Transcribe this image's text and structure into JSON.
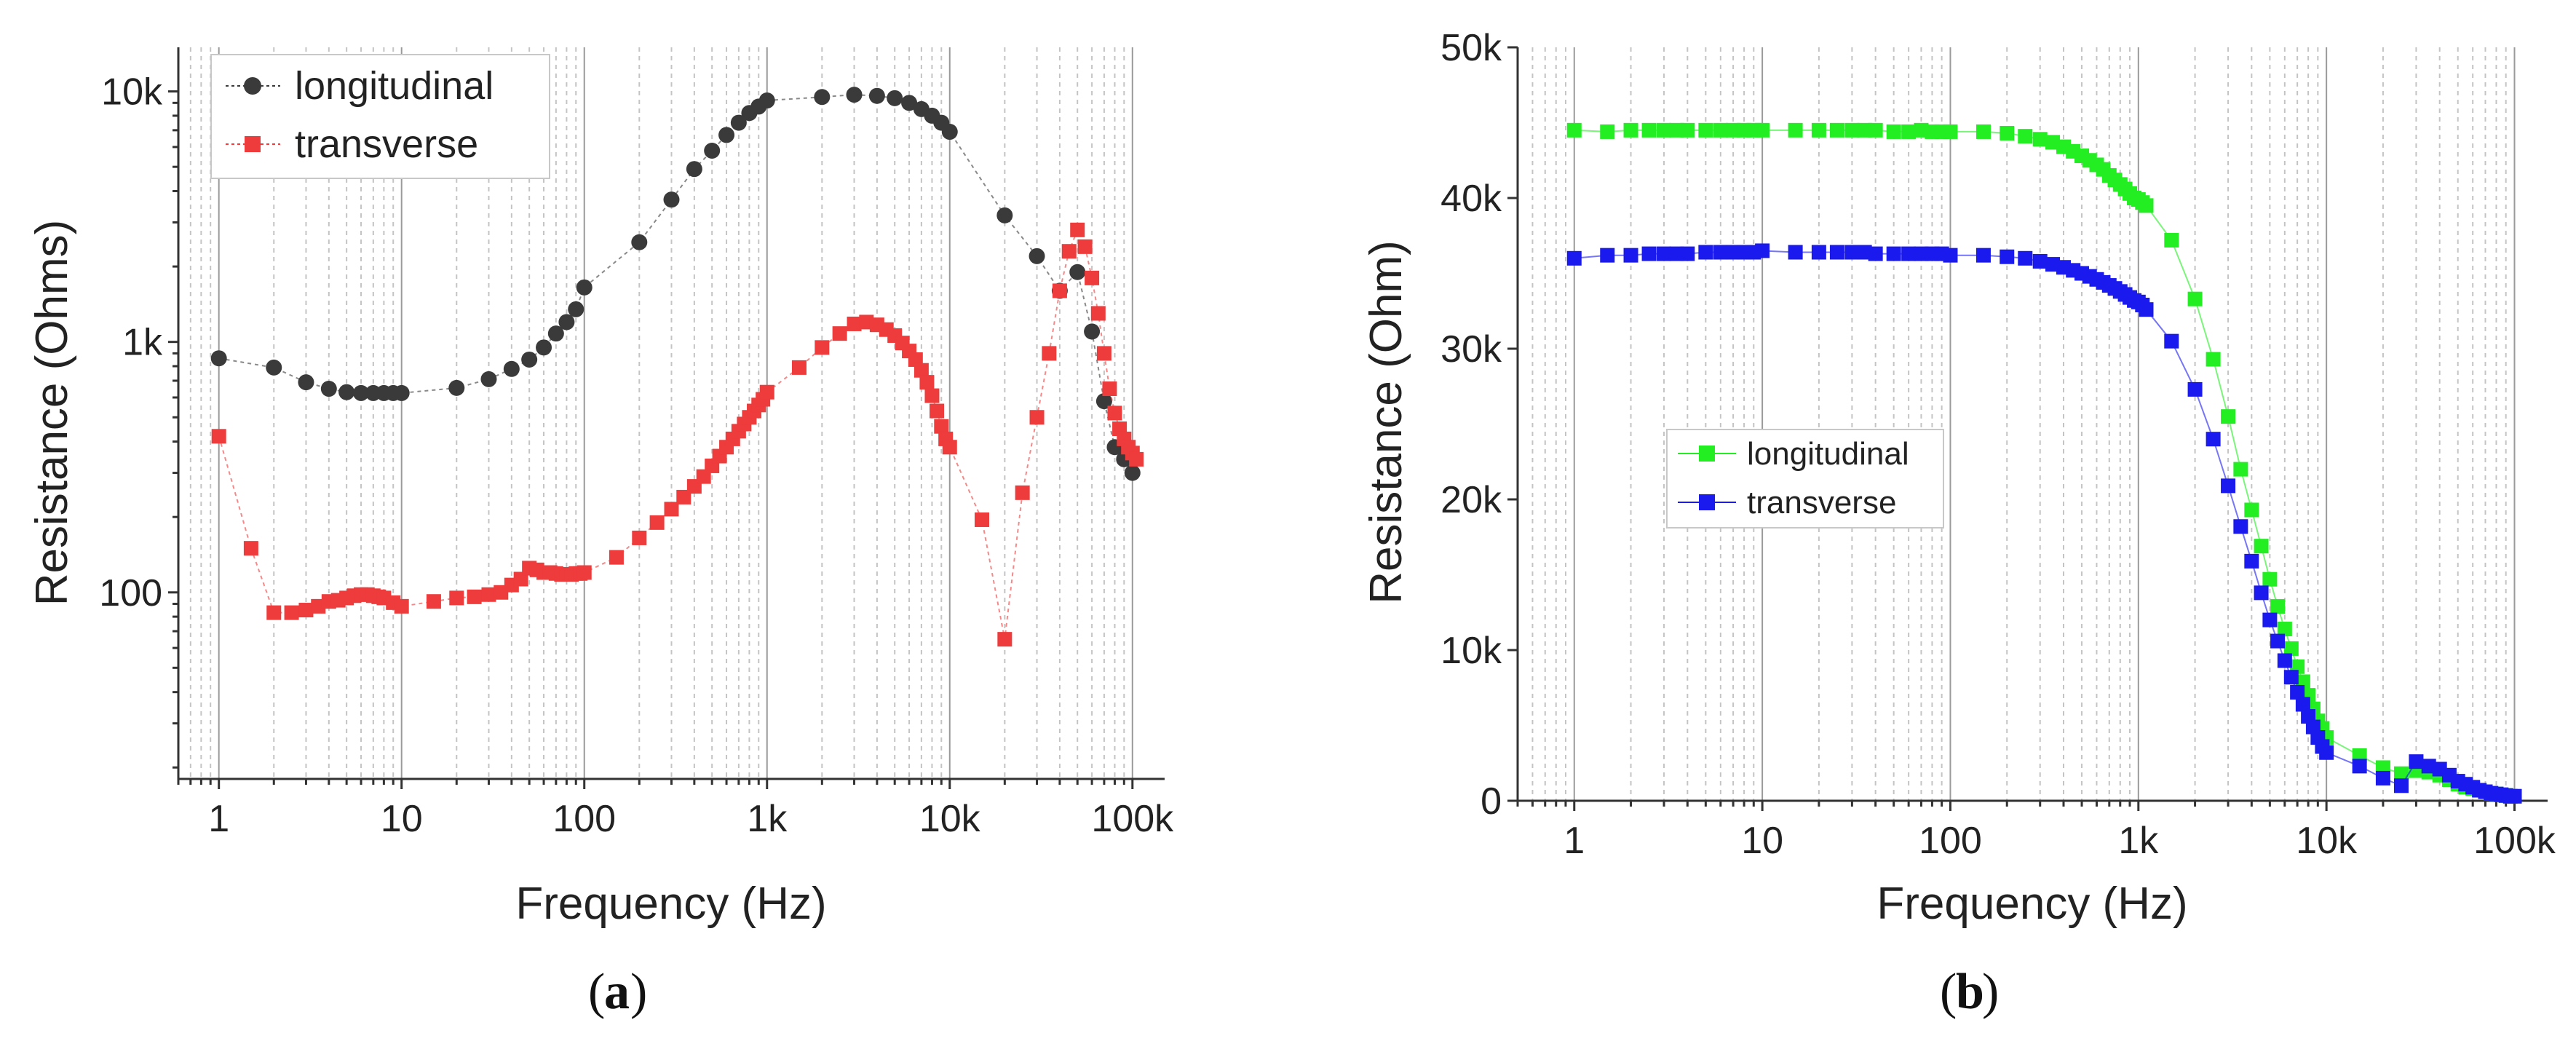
{
  "chart_data": [
    {
      "type": "scatter",
      "panel_label": "a",
      "xlabel": "Frequency (Hz)",
      "ylabel": "Resistance (Ohms)",
      "xscale": "log",
      "yscale": "log",
      "xlim": [
        0.6,
        150000
      ],
      "ylim": [
        18,
        15000
      ],
      "xtick_values": [
        1,
        10,
        100,
        1000,
        10000,
        100000
      ],
      "xtick_labels": [
        "1",
        "10",
        "100",
        "1k",
        "10k",
        "100k"
      ],
      "ytick_values": [
        100,
        1000,
        10000
      ],
      "ytick_labels": [
        "100",
        "1k",
        "10k"
      ],
      "legend_position": "top-left",
      "series": [
        {
          "name": "longitudinal",
          "color": "#3a3a3a",
          "marker": "circle",
          "x": [
            1,
            2,
            3,
            4,
            5,
            6,
            7,
            8,
            9,
            10,
            20,
            30,
            40,
            50,
            60,
            70,
            80,
            90,
            100,
            200,
            300,
            400,
            500,
            600,
            700,
            800,
            900,
            1000,
            2000,
            3000,
            4000,
            5000,
            6000,
            7000,
            8000,
            9000,
            10000,
            20000,
            30000,
            40000,
            50000,
            60000,
            70000,
            80000,
            90000,
            100000
          ],
          "y": [
            860,
            790,
            690,
            650,
            630,
            625,
            625,
            625,
            625,
            625,
            655,
            710,
            780,
            850,
            950,
            1080,
            1200,
            1350,
            1650,
            2500,
            3700,
            4900,
            5800,
            6700,
            7500,
            8200,
            8700,
            9200,
            9500,
            9700,
            9600,
            9400,
            9000,
            8500,
            8000,
            7500,
            6900,
            3200,
            2200,
            1600,
            1900,
            1100,
            580,
            380,
            340,
            300
          ]
        },
        {
          "name": "transverse",
          "color": "#ee3b3b",
          "marker": "square",
          "x": [
            1,
            1.5,
            2,
            2.5,
            3,
            3.5,
            4,
            4.5,
            5,
            5.5,
            6,
            6.5,
            7,
            7.5,
            8,
            9,
            10,
            15,
            20,
            25,
            30,
            35,
            40,
            45,
            50,
            55,
            60,
            65,
            70,
            75,
            80,
            85,
            90,
            95,
            100,
            150,
            200,
            250,
            300,
            350,
            400,
            450,
            500,
            550,
            600,
            650,
            700,
            750,
            800,
            850,
            900,
            950,
            1000,
            1500,
            2000,
            2500,
            3000,
            3500,
            4000,
            4500,
            5000,
            5500,
            6000,
            6500,
            7000,
            7500,
            8000,
            8500,
            9000,
            9500,
            10000,
            15000,
            20000,
            25000,
            30000,
            35000,
            40000,
            45000,
            50000,
            55000,
            60000,
            65000,
            70000,
            75000,
            80000,
            85000,
            90000,
            95000,
            100000,
            105000
          ],
          "y": [
            420,
            150,
            83,
            83,
            85,
            88,
            92,
            93,
            95,
            97,
            98,
            98,
            97,
            96,
            95,
            91,
            88,
            92,
            95,
            96,
            98,
            100,
            107,
            113,
            125,
            123,
            120,
            120,
            119,
            118,
            118,
            118,
            119,
            119,
            120,
            138,
            165,
            190,
            215,
            240,
            265,
            290,
            320,
            350,
            380,
            410,
            440,
            470,
            500,
            530,
            560,
            590,
            630,
            790,
            950,
            1080,
            1180,
            1200,
            1170,
            1120,
            1060,
            990,
            920,
            850,
            770,
            690,
            610,
            530,
            460,
            410,
            380,
            195,
            65,
            250,
            500,
            900,
            1600,
            2300,
            2800,
            2400,
            1800,
            1300,
            900,
            650,
            520,
            450,
            410,
            380,
            360,
            340
          ]
        }
      ]
    },
    {
      "type": "line",
      "panel_label": "b",
      "xlabel": "Frequency (Hz)",
      "ylabel": "Resistance (Ohm)",
      "xscale": "log",
      "yscale": "linear",
      "xlim": [
        0.5,
        150000
      ],
      "ylim": [
        0,
        50000
      ],
      "xtick_values": [
        1,
        10,
        100,
        1000,
        10000,
        100000
      ],
      "xtick_labels": [
        "1",
        "10",
        "100",
        "1k",
        "10k",
        "100k"
      ],
      "ytick_values": [
        0,
        10000,
        20000,
        30000,
        40000,
        50000
      ],
      "ytick_labels": [
        "0",
        "10k",
        "20k",
        "30k",
        "40k",
        "50k"
      ],
      "legend_position": "center-left",
      "series": [
        {
          "name": "longitudinal",
          "color": "#22ee22",
          "marker": "square",
          "x": [
            1,
            1.5,
            2,
            2.5,
            3,
            3.5,
            4,
            5,
            6,
            7,
            8,
            9,
            10,
            15,
            20,
            25,
            30,
            35,
            40,
            50,
            60,
            70,
            80,
            90,
            100,
            150,
            200,
            250,
            300,
            350,
            400,
            450,
            500,
            550,
            600,
            650,
            700,
            750,
            800,
            850,
            900,
            950,
            1000,
            1050,
            1100,
            1500,
            2000,
            2500,
            3000,
            3500,
            4000,
            4500,
            5000,
            5500,
            6000,
            6500,
            7000,
            7500,
            8000,
            8500,
            9000,
            9500,
            10000,
            15000,
            20000,
            25000,
            30000,
            35000,
            40000,
            45000,
            50000,
            55000,
            60000,
            65000,
            70000,
            75000,
            80000,
            85000,
            90000,
            95000,
            100000
          ],
          "y": [
            44500,
            44400,
            44500,
            44500,
            44500,
            44500,
            44500,
            44500,
            44500,
            44500,
            44500,
            44500,
            44500,
            44500,
            44500,
            44500,
            44500,
            44500,
            44500,
            44400,
            44400,
            44500,
            44400,
            44400,
            44400,
            44400,
            44300,
            44100,
            43900,
            43700,
            43400,
            43100,
            42800,
            42500,
            42200,
            41900,
            41500,
            41200,
            40900,
            40600,
            40300,
            40000,
            39900,
            39700,
            39500,
            37200,
            33300,
            29300,
            25500,
            22000,
            19300,
            16900,
            14700,
            12900,
            11400,
            10100,
            8900,
            7900,
            7000,
            6100,
            5300,
            4800,
            4200,
            3000,
            2200,
            1800,
            2000,
            1900,
            1700,
            1400,
            1100,
            900,
            800,
            700,
            600,
            500,
            450,
            400,
            350,
            300,
            300
          ]
        },
        {
          "name": "transverse",
          "color": "#1a1aee",
          "marker": "square",
          "x": [
            1,
            1.5,
            2,
            2.5,
            3,
            3.5,
            4,
            5,
            6,
            7,
            8,
            9,
            10,
            15,
            20,
            25,
            30,
            35,
            40,
            50,
            60,
            70,
            80,
            90,
            100,
            150,
            200,
            250,
            300,
            350,
            400,
            450,
            500,
            550,
            600,
            650,
            700,
            750,
            800,
            850,
            900,
            950,
            1000,
            1050,
            1100,
            1500,
            2000,
            2500,
            3000,
            3500,
            4000,
            4500,
            5000,
            5500,
            6000,
            6500,
            7000,
            7500,
            8000,
            8500,
            9000,
            9500,
            10000,
            15000,
            20000,
            25000,
            30000,
            35000,
            40000,
            45000,
            50000,
            55000,
            60000,
            65000,
            70000,
            75000,
            80000,
            85000,
            90000,
            95000,
            100000
          ],
          "y": [
            36000,
            36200,
            36200,
            36300,
            36300,
            36300,
            36300,
            36400,
            36400,
            36400,
            36400,
            36400,
            36500,
            36400,
            36400,
            36400,
            36400,
            36400,
            36300,
            36300,
            36300,
            36300,
            36300,
            36300,
            36200,
            36200,
            36100,
            36000,
            35800,
            35600,
            35400,
            35200,
            35000,
            34800,
            34600,
            34400,
            34200,
            34000,
            33800,
            33600,
            33400,
            33200,
            33100,
            32900,
            32600,
            30500,
            27300,
            24000,
            20900,
            18200,
            15900,
            13800,
            12000,
            10600,
            9300,
            8200,
            7200,
            6400,
            5600,
            4900,
            4200,
            3600,
            3200,
            2300,
            1500,
            1000,
            2600,
            2300,
            2100,
            1700,
            1300,
            1100,
            900,
            700,
            600,
            500,
            450,
            400,
            350,
            300,
            300
          ]
        }
      ]
    }
  ]
}
